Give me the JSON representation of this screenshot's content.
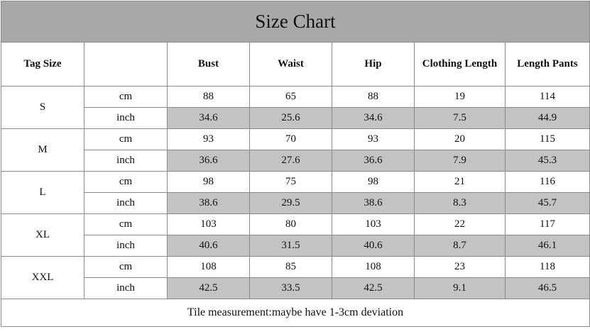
{
  "title": "Size Chart",
  "header": {
    "tag_size": "Tag Size",
    "columns": [
      "Bust",
      "Waist",
      "Hip",
      "Clothing Length",
      "Length Pants"
    ]
  },
  "sizes": [
    {
      "size": "S",
      "rows": [
        {
          "unit": "cm",
          "values": [
            88,
            65,
            88,
            19,
            114
          ]
        },
        {
          "unit": "inch",
          "values": [
            34.6,
            25.6,
            34.6,
            7.5,
            44.9
          ]
        }
      ]
    },
    {
      "size": "M",
      "rows": [
        {
          "unit": "cm",
          "values": [
            93,
            70,
            93,
            20,
            115
          ]
        },
        {
          "unit": "inch",
          "values": [
            36.6,
            27.6,
            36.6,
            7.9,
            45.3
          ]
        }
      ]
    },
    {
      "size": "L",
      "rows": [
        {
          "unit": "cm",
          "values": [
            98,
            75,
            98,
            21,
            116
          ]
        },
        {
          "unit": "inch",
          "values": [
            38.6,
            29.5,
            38.6,
            8.3,
            45.7
          ]
        }
      ]
    },
    {
      "size": "XL",
      "rows": [
        {
          "unit": "cm",
          "values": [
            103,
            80,
            103,
            22,
            117
          ]
        },
        {
          "unit": "inch",
          "values": [
            40.6,
            31.5,
            40.6,
            8.7,
            46.1
          ]
        }
      ]
    },
    {
      "size": "XXL",
      "rows": [
        {
          "unit": "cm",
          "values": [
            108,
            85,
            108,
            23,
            118
          ]
        },
        {
          "unit": "inch",
          "values": [
            42.5,
            33.5,
            42.5,
            9.1,
            46.5
          ]
        }
      ]
    }
  ],
  "footer": "Tile measurement:maybe have 1-3cm deviation"
}
